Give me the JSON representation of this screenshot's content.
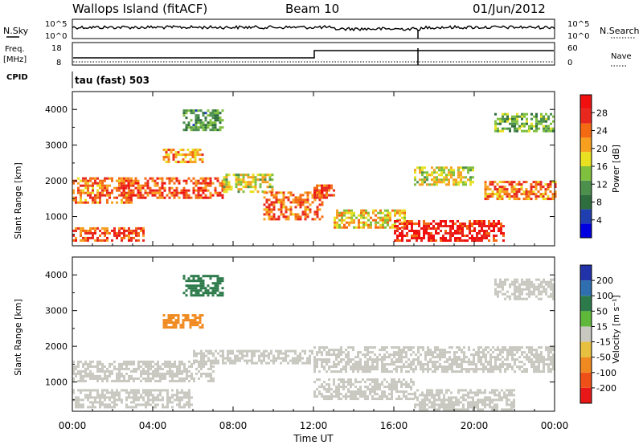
{
  "header": {
    "station": "Wallops Island (fitACF)",
    "beam": "Beam 10",
    "date": "01/Jun/2012"
  },
  "strip_panels": {
    "nsky_label": "N.Sky",
    "nsky_ticks": [
      "10^5",
      "10^0"
    ],
    "nsearch_label": "N.Search",
    "nsearch_ticks": [
      "10^5",
      "10^0"
    ],
    "freq_label_1": "Freq.",
    "freq_label_2": "[MHz]",
    "freq_ticks": [
      "18",
      "8"
    ],
    "nave_label": "Nave",
    "nave_ticks": [
      "60",
      "0"
    ],
    "cpid_label": "CPID",
    "cpid_text": "tau (fast) 503"
  },
  "power_panel": {
    "ylabel": "Slant Range [km]",
    "colorbar_label": "Power [dB]",
    "colorbar_ticks": [
      "28",
      "24",
      "20",
      "16",
      "12",
      "8",
      "4"
    ],
    "colors": [
      "#0000e0",
      "#1f3fb0",
      "#2e6e3e",
      "#4d8f4d",
      "#7fc03f",
      "#e8e020",
      "#f7a020",
      "#f46a12",
      "#e8281e",
      "#f01010"
    ]
  },
  "velocity_panel": {
    "ylabel": "Slant Range [km]",
    "colorbar_label": "Velocity [m s⁻¹]",
    "colorbar_ticks": [
      "200",
      "100",
      "50",
      "15",
      "-15",
      "-50",
      "-100",
      "-200"
    ],
    "colors": [
      "#2233aa",
      "#2f6fb0",
      "#2c7a4a",
      "#5fb83a",
      "#c8c8c0",
      "#e8c040",
      "#f08a20",
      "#ef5018",
      "#e81818"
    ]
  },
  "x_axis": {
    "label": "Time UT",
    "ticks": [
      "00:00",
      "04:00",
      "08:00",
      "12:00",
      "16:00",
      "20:00",
      "00:00"
    ]
  },
  "chart_data": [
    {
      "type": "line",
      "title": "N.Sky / N.Search",
      "y_scale": "log",
      "x": [
        0,
        24
      ],
      "series": [
        {
          "name": "N.Sky",
          "description_values": [
            3000,
            3000
          ]
        }
      ]
    },
    {
      "type": "line",
      "title": "Freq. / Nave",
      "x": [
        0,
        12,
        12,
        24
      ],
      "series": [
        {
          "name": "Freq.",
          "values": [
            10.5,
            10.5,
            14.5,
            14.5
          ]
        }
      ],
      "ylim_freq": [
        8,
        18
      ],
      "ylim_nave": [
        0,
        60
      ]
    },
    {
      "type": "heatmap",
      "title": "Power [dB]",
      "xlabel": "Time UT",
      "ylabel": "Slant Range [km]",
      "xlim": [
        0,
        24
      ],
      "ylim": [
        180,
        4500
      ],
      "colorbar_range": [
        0,
        30
      ],
      "regions": [
        {
          "t0": 0.0,
          "t1": 3.0,
          "r0": 1400,
          "r1": 2100,
          "level": 22
        },
        {
          "t0": 0.0,
          "t1": 3.5,
          "r0": 300,
          "r1": 700,
          "level": 24
        },
        {
          "t0": 2.5,
          "t1": 7.5,
          "r0": 1500,
          "r1": 2100,
          "level": 24
        },
        {
          "t0": 4.5,
          "t1": 6.5,
          "r0": 2500,
          "r1": 2900,
          "level": 20
        },
        {
          "t0": 5.5,
          "t1": 7.5,
          "r0": 3400,
          "r1": 4000,
          "level": 10
        },
        {
          "t0": 7.5,
          "t1": 10.0,
          "r0": 1700,
          "r1": 2200,
          "level": 16
        },
        {
          "t0": 9.5,
          "t1": 12.5,
          "r0": 900,
          "r1": 1700,
          "level": 22
        },
        {
          "t0": 12.0,
          "t1": 13.0,
          "r0": 1500,
          "r1": 1900,
          "level": 24
        },
        {
          "t0": 13.0,
          "t1": 16.5,
          "r0": 700,
          "r1": 1200,
          "level": 18
        },
        {
          "t0": 16.0,
          "t1": 21.5,
          "r0": 300,
          "r1": 900,
          "level": 27
        },
        {
          "t0": 17.0,
          "t1": 20.0,
          "r0": 1900,
          "r1": 2400,
          "level": 16
        },
        {
          "t0": 20.5,
          "t1": 24.0,
          "r0": 1500,
          "r1": 2000,
          "level": 22
        },
        {
          "t0": 21.0,
          "t1": 24.0,
          "r0": 3400,
          "r1": 3900,
          "level": 12
        }
      ]
    },
    {
      "type": "heatmap",
      "title": "Velocity [m s⁻¹]",
      "xlabel": "Time UT",
      "ylabel": "Slant Range [km]",
      "xlim": [
        0,
        24
      ],
      "ylim": [
        180,
        4500
      ],
      "colorbar_range": [
        -200,
        200
      ],
      "regions": [
        {
          "t0": 0.0,
          "t1": 7.0,
          "r0": 1000,
          "r1": 1600,
          "level": 0
        },
        {
          "t0": 0.0,
          "t1": 6.0,
          "r0": 300,
          "r1": 800,
          "level": 0
        },
        {
          "t0": 4.5,
          "t1": 6.5,
          "r0": 2500,
          "r1": 2900,
          "level": -60
        },
        {
          "t0": 5.5,
          "t1": 7.5,
          "r0": 3400,
          "r1": 4000,
          "level": 40
        },
        {
          "t0": 6.0,
          "t1": 12.0,
          "r0": 1500,
          "r1": 1900,
          "level": 0
        },
        {
          "t0": 12.0,
          "t1": 24.0,
          "r0": 1300,
          "r1": 2000,
          "level": 0
        },
        {
          "t0": 12.0,
          "t1": 17.0,
          "r0": 500,
          "r1": 1100,
          "level": 0
        },
        {
          "t0": 17.0,
          "t1": 22.0,
          "r0": 200,
          "r1": 800,
          "level": 0
        },
        {
          "t0": 21.0,
          "t1": 24.0,
          "r0": 3300,
          "r1": 3900,
          "level": 0
        }
      ]
    }
  ]
}
